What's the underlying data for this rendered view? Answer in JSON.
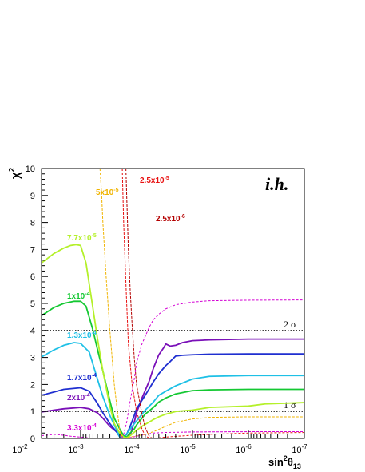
{
  "chart_data": {
    "type": "line",
    "panel_label": "i.h.",
    "xlabel": {
      "base": "sin",
      "sup": "2",
      "mid": "θ",
      "sub": "13"
    },
    "ylabel": {
      "base": "χ",
      "sup": "2"
    },
    "x_axis": {
      "scale": "log",
      "direction": "decreasing",
      "range": [
        0.005,
        1e-07
      ],
      "ticks": [
        {
          "value": 0.01,
          "base": "10",
          "exp": "-2"
        },
        {
          "value": 0.001,
          "base": "10",
          "exp": "-3"
        },
        {
          "value": 0.0001,
          "base": "10",
          "exp": "-4"
        },
        {
          "value": 1e-05,
          "base": "10",
          "exp": "-5"
        },
        {
          "value": 1e-06,
          "base": "10",
          "exp": "-6"
        },
        {
          "value": 1e-07,
          "base": "10",
          "exp": "-7"
        }
      ]
    },
    "y_axis": {
      "range": [
        0,
        10
      ],
      "ticks": [
        0,
        1,
        2,
        3,
        4,
        5,
        6,
        7,
        8,
        9,
        10
      ]
    },
    "reference_lines": [
      {
        "y": 4,
        "label": "2 σ"
      },
      {
        "y": 1,
        "label": "1 σ"
      }
    ],
    "series": [
      {
        "name": "3.3x10⁻⁴",
        "label_base": "3.3x10",
        "label_exp": "-4",
        "color": "#d400d4",
        "style": "dashed",
        "points": [
          [
            0.005,
            0.1
          ],
          [
            0.003,
            0.15
          ],
          [
            0.002,
            0.12
          ],
          [
            0.0015,
            0.08
          ],
          [
            0.001,
            0.05
          ],
          [
            0.0007,
            0.02
          ],
          [
            0.0005,
            0.0
          ],
          [
            0.0003,
            0.0
          ],
          [
            0.0002,
            0.0
          ],
          [
            0.00013,
            0.03
          ],
          [
            0.0001,
            0.08
          ],
          [
            7e-05,
            0.15
          ],
          [
            5e-05,
            0.2
          ],
          [
            3e-05,
            0.22
          ],
          [
            1e-05,
            0.24
          ],
          [
            1e-06,
            0.25
          ],
          [
            1e-07,
            0.25
          ]
        ]
      },
      {
        "name": "2x10⁻⁴",
        "label_base": "2x10",
        "label_exp": "-4",
        "color": "#7a10b8",
        "style": "solid",
        "points": [
          [
            0.005,
            0.98
          ],
          [
            0.003,
            1.05
          ],
          [
            0.002,
            1.1
          ],
          [
            0.001,
            1.15
          ],
          [
            0.0007,
            1.1
          ],
          [
            0.0005,
            0.95
          ],
          [
            0.0004,
            0.75
          ],
          [
            0.0003,
            0.45
          ],
          [
            0.0002,
            0.15
          ],
          [
            0.00017,
            0.04
          ],
          [
            0.00015,
            0.0
          ],
          [
            0.00013,
            0.12
          ],
          [
            0.00011,
            0.6
          ],
          [
            0.0001,
            0.95
          ],
          [
            8e-05,
            1.5
          ],
          [
            6e-05,
            2.1
          ],
          [
            5e-05,
            2.6
          ],
          [
            4e-05,
            3.1
          ],
          [
            3.3e-05,
            3.35
          ],
          [
            3e-05,
            3.5
          ],
          [
            2.5e-05,
            3.42
          ],
          [
            2e-05,
            3.45
          ],
          [
            1.5e-05,
            3.55
          ],
          [
            1e-05,
            3.62
          ],
          [
            5e-06,
            3.65
          ],
          [
            1e-06,
            3.68
          ],
          [
            1e-07,
            3.68
          ]
        ]
      },
      {
        "name": "1.7x10⁻⁴",
        "label_base": "1.7x10",
        "label_exp": "-4",
        "color": "#1f2fd0",
        "style": "solid",
        "points": [
          [
            0.005,
            1.6
          ],
          [
            0.003,
            1.72
          ],
          [
            0.002,
            1.82
          ],
          [
            0.001,
            1.88
          ],
          [
            0.0007,
            1.75
          ],
          [
            0.0005,
            1.3
          ],
          [
            0.0004,
            0.95
          ],
          [
            0.0003,
            0.55
          ],
          [
            0.00022,
            0.2
          ],
          [
            0.0002,
            0.06
          ],
          [
            0.00018,
            0.0
          ],
          [
            0.00015,
            0.15
          ],
          [
            0.00013,
            0.45
          ],
          [
            0.00011,
            0.85
          ],
          [
            0.0001,
            1.1
          ],
          [
            7e-05,
            1.6
          ],
          [
            5e-05,
            2.1
          ],
          [
            4e-05,
            2.4
          ],
          [
            3e-05,
            2.7
          ],
          [
            2.5e-05,
            2.85
          ],
          [
            2e-05,
            3.05
          ],
          [
            1.5e-05,
            3.08
          ],
          [
            1e-05,
            3.1
          ],
          [
            5e-06,
            3.12
          ],
          [
            1e-06,
            3.13
          ],
          [
            1e-07,
            3.13
          ]
        ]
      },
      {
        "name": "1.3x10⁻⁴",
        "label_base": "1.3x10",
        "label_exp": "-4",
        "color": "#1ec0e6",
        "style": "solid",
        "points": [
          [
            0.005,
            3.02
          ],
          [
            0.003,
            3.28
          ],
          [
            0.002,
            3.45
          ],
          [
            0.0013,
            3.55
          ],
          [
            0.001,
            3.52
          ],
          [
            0.0007,
            3.2
          ],
          [
            0.0005,
            2.2
          ],
          [
            0.0004,
            1.55
          ],
          [
            0.0003,
            0.85
          ],
          [
            0.00022,
            0.25
          ],
          [
            0.0002,
            0.05
          ],
          [
            0.00018,
            0.02
          ],
          [
            0.00016,
            0.1
          ],
          [
            0.00014,
            0.25
          ],
          [
            0.00012,
            0.45
          ],
          [
            0.0001,
            0.65
          ],
          [
            7e-05,
            1.05
          ],
          [
            5e-05,
            1.35
          ],
          [
            4e-05,
            1.6
          ],
          [
            3e-05,
            1.75
          ],
          [
            2e-05,
            1.95
          ],
          [
            1e-05,
            2.2
          ],
          [
            5e-06,
            2.3
          ],
          [
            1e-06,
            2.33
          ],
          [
            1e-07,
            2.33
          ]
        ]
      },
      {
        "name": "1x10⁻⁴",
        "label_base": "1x10",
        "label_exp": "-4",
        "color": "#14c832",
        "style": "solid",
        "points": [
          [
            0.005,
            4.55
          ],
          [
            0.003,
            4.85
          ],
          [
            0.002,
            5.0
          ],
          [
            0.0013,
            5.08
          ],
          [
            0.001,
            5.08
          ],
          [
            0.0008,
            4.9
          ],
          [
            0.0006,
            4.0
          ],
          [
            0.0005,
            3.3
          ],
          [
            0.0004,
            2.5
          ],
          [
            0.0003,
            1.4
          ],
          [
            0.00025,
            0.75
          ],
          [
            0.0002,
            0.35
          ],
          [
            0.00017,
            0.1
          ],
          [
            0.00015,
            0.05
          ],
          [
            0.00013,
            0.2
          ],
          [
            0.00011,
            0.35
          ],
          [
            0.0001,
            0.5
          ],
          [
            7e-05,
            0.9
          ],
          [
            5e-05,
            1.15
          ],
          [
            4e-05,
            1.35
          ],
          [
            3e-05,
            1.5
          ],
          [
            2e-05,
            1.65
          ],
          [
            1e-05,
            1.77
          ],
          [
            5e-06,
            1.8
          ],
          [
            1e-06,
            1.82
          ],
          [
            1e-07,
            1.82
          ]
        ]
      },
      {
        "name": "7.7x10⁻⁵",
        "label_base": "7.7x10",
        "label_exp": "-5",
        "color": "#b4f02a",
        "style": "solid",
        "points": [
          [
            0.005,
            6.5
          ],
          [
            0.003,
            6.85
          ],
          [
            0.002,
            7.05
          ],
          [
            0.0015,
            7.15
          ],
          [
            0.0012,
            7.18
          ],
          [
            0.001,
            7.15
          ],
          [
            0.0008,
            6.5
          ],
          [
            0.0006,
            4.8
          ],
          [
            0.0005,
            3.7
          ],
          [
            0.0004,
            2.5
          ],
          [
            0.0003,
            1.2
          ],
          [
            0.00025,
            0.55
          ],
          [
            0.0002,
            0.2
          ],
          [
            0.00017,
            0.05
          ],
          [
            0.00015,
            0.02
          ],
          [
            0.00013,
            0.1
          ],
          [
            0.0001,
            0.3
          ],
          [
            8e-05,
            0.45
          ],
          [
            5e-05,
            0.7
          ],
          [
            4e-05,
            0.8
          ],
          [
            3e-05,
            0.9
          ],
          [
            2e-05,
            1.0
          ],
          [
            1e-05,
            1.05
          ],
          [
            5e-06,
            1.15
          ],
          [
            1e-06,
            1.2
          ],
          [
            5e-07,
            1.28
          ],
          [
            1e-07,
            1.33
          ]
        ]
      },
      {
        "name": "5x10⁻⁵",
        "label_base": "5x10",
        "label_exp": "-5",
        "color": "#f0b400",
        "style": "dashed",
        "points": [
          [
            0.00045,
            10.0
          ],
          [
            0.00042,
            9.0
          ],
          [
            0.0004,
            8.0
          ],
          [
            0.00035,
            6.0
          ],
          [
            0.0003,
            4.0
          ],
          [
            0.00025,
            2.0
          ],
          [
            0.00022,
            1.0
          ],
          [
            0.0002,
            0.3
          ],
          [
            0.00018,
            0.05
          ],
          [
            0.00016,
            0.0
          ],
          [
            0.00013,
            0.05
          ],
          [
            0.0001,
            0.1
          ],
          [
            7e-05,
            0.15
          ],
          [
            5e-05,
            0.25
          ],
          [
            3e-05,
            0.45
          ],
          [
            2e-05,
            0.6
          ],
          [
            1e-05,
            0.72
          ],
          [
            5e-06,
            0.78
          ],
          [
            1e-06,
            0.8
          ],
          [
            1e-07,
            0.8
          ]
        ]
      },
      {
        "name": "2.5x10⁻⁵",
        "label_base": "2.5x10",
        "label_exp": "-5",
        "color": "#e81010",
        "style": "dashed",
        "points": [
          [
            0.00018,
            10.0
          ],
          [
            0.000175,
            9.0
          ],
          [
            0.00017,
            8.0
          ],
          [
            0.00016,
            6.5
          ],
          [
            0.00015,
            5.0
          ],
          [
            0.00014,
            3.5
          ],
          [
            0.00012,
            2.0
          ],
          [
            0.0001,
            1.0
          ],
          [
            8e-05,
            0.35
          ],
          [
            7e-05,
            0.1
          ],
          [
            6e-05,
            0.02
          ],
          [
            5e-05,
            0.0
          ],
          [
            3e-05,
            0.05
          ],
          [
            1e-05,
            0.12
          ],
          [
            5e-06,
            0.15
          ],
          [
            1e-06,
            0.2
          ],
          [
            1e-07,
            0.22
          ]
        ]
      },
      {
        "name": "2.5x10⁻⁶",
        "label_base": "2.5x10",
        "label_exp": "-6",
        "color": "#b40000",
        "style": "dashed",
        "points": [
          [
            0.000155,
            10.0
          ],
          [
            0.00015,
            9.0
          ],
          [
            0.000145,
            8.0
          ],
          [
            0.00014,
            7.0
          ],
          [
            0.00013,
            5.5
          ],
          [
            0.00012,
            4.2
          ],
          [
            0.00011,
            3.0
          ],
          [
            0.0001,
            2.0
          ],
          [
            8e-05,
            0.9
          ],
          [
            7e-05,
            0.4
          ],
          [
            6e-05,
            0.1
          ],
          [
            5.5e-05,
            0.03
          ],
          [
            5e-05,
            0.0
          ],
          [
            4e-05,
            0.0
          ],
          [
            2e-05,
            0.0
          ],
          [
            1e-05,
            0.0
          ],
          [
            1e-07,
            0.0
          ]
        ]
      },
      {
        "name": "",
        "color": "#d400d4",
        "style": "dashed",
        "points": [
          [
            0.000185,
            0.0
          ],
          [
            0.00017,
            0.15
          ],
          [
            0.00015,
            0.6
          ],
          [
            0.00013,
            1.4
          ],
          [
            0.00011,
            2.2
          ],
          [
            0.0001,
            2.8
          ],
          [
            8e-05,
            3.5
          ],
          [
            6e-05,
            4.1
          ],
          [
            5e-05,
            4.4
          ],
          [
            4e-05,
            4.6
          ],
          [
            3e-05,
            4.8
          ],
          [
            2e-05,
            4.95
          ],
          [
            1e-05,
            5.05
          ],
          [
            5e-06,
            5.1
          ],
          [
            1e-06,
            5.12
          ],
          [
            1e-07,
            5.13
          ]
        ]
      }
    ]
  }
}
